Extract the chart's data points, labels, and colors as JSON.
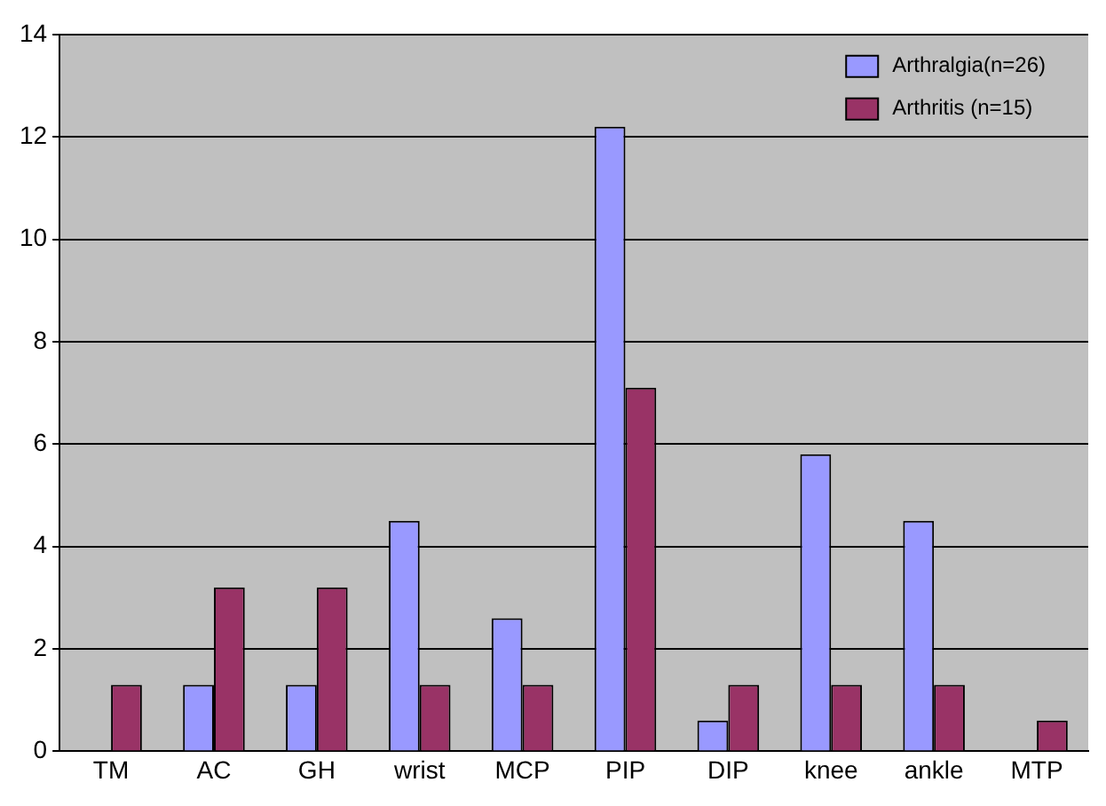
{
  "chart_data": {
    "type": "bar",
    "categories": [
      "TM",
      "AC",
      "GH",
      "wrist",
      "MCP",
      "PIP",
      "DIP",
      "knee",
      "ankle",
      "MTP"
    ],
    "series": [
      {
        "name": "Arthralgia(n=26)",
        "color": "#9999ff",
        "values": [
          0,
          1.3,
          1.3,
          4.5,
          2.6,
          12.2,
          0.6,
          5.8,
          4.5,
          0
        ]
      },
      {
        "name": "Arthritis (n=15)",
        "color": "#993366",
        "values": [
          1.3,
          3.2,
          3.2,
          1.3,
          1.3,
          7.1,
          1.3,
          1.3,
          1.3,
          0.6
        ]
      }
    ],
    "ylim": [
      0,
      14
    ],
    "yticks": [
      0,
      2,
      4,
      6,
      8,
      10,
      12,
      14
    ],
    "grid": "y",
    "legend": "top right"
  }
}
